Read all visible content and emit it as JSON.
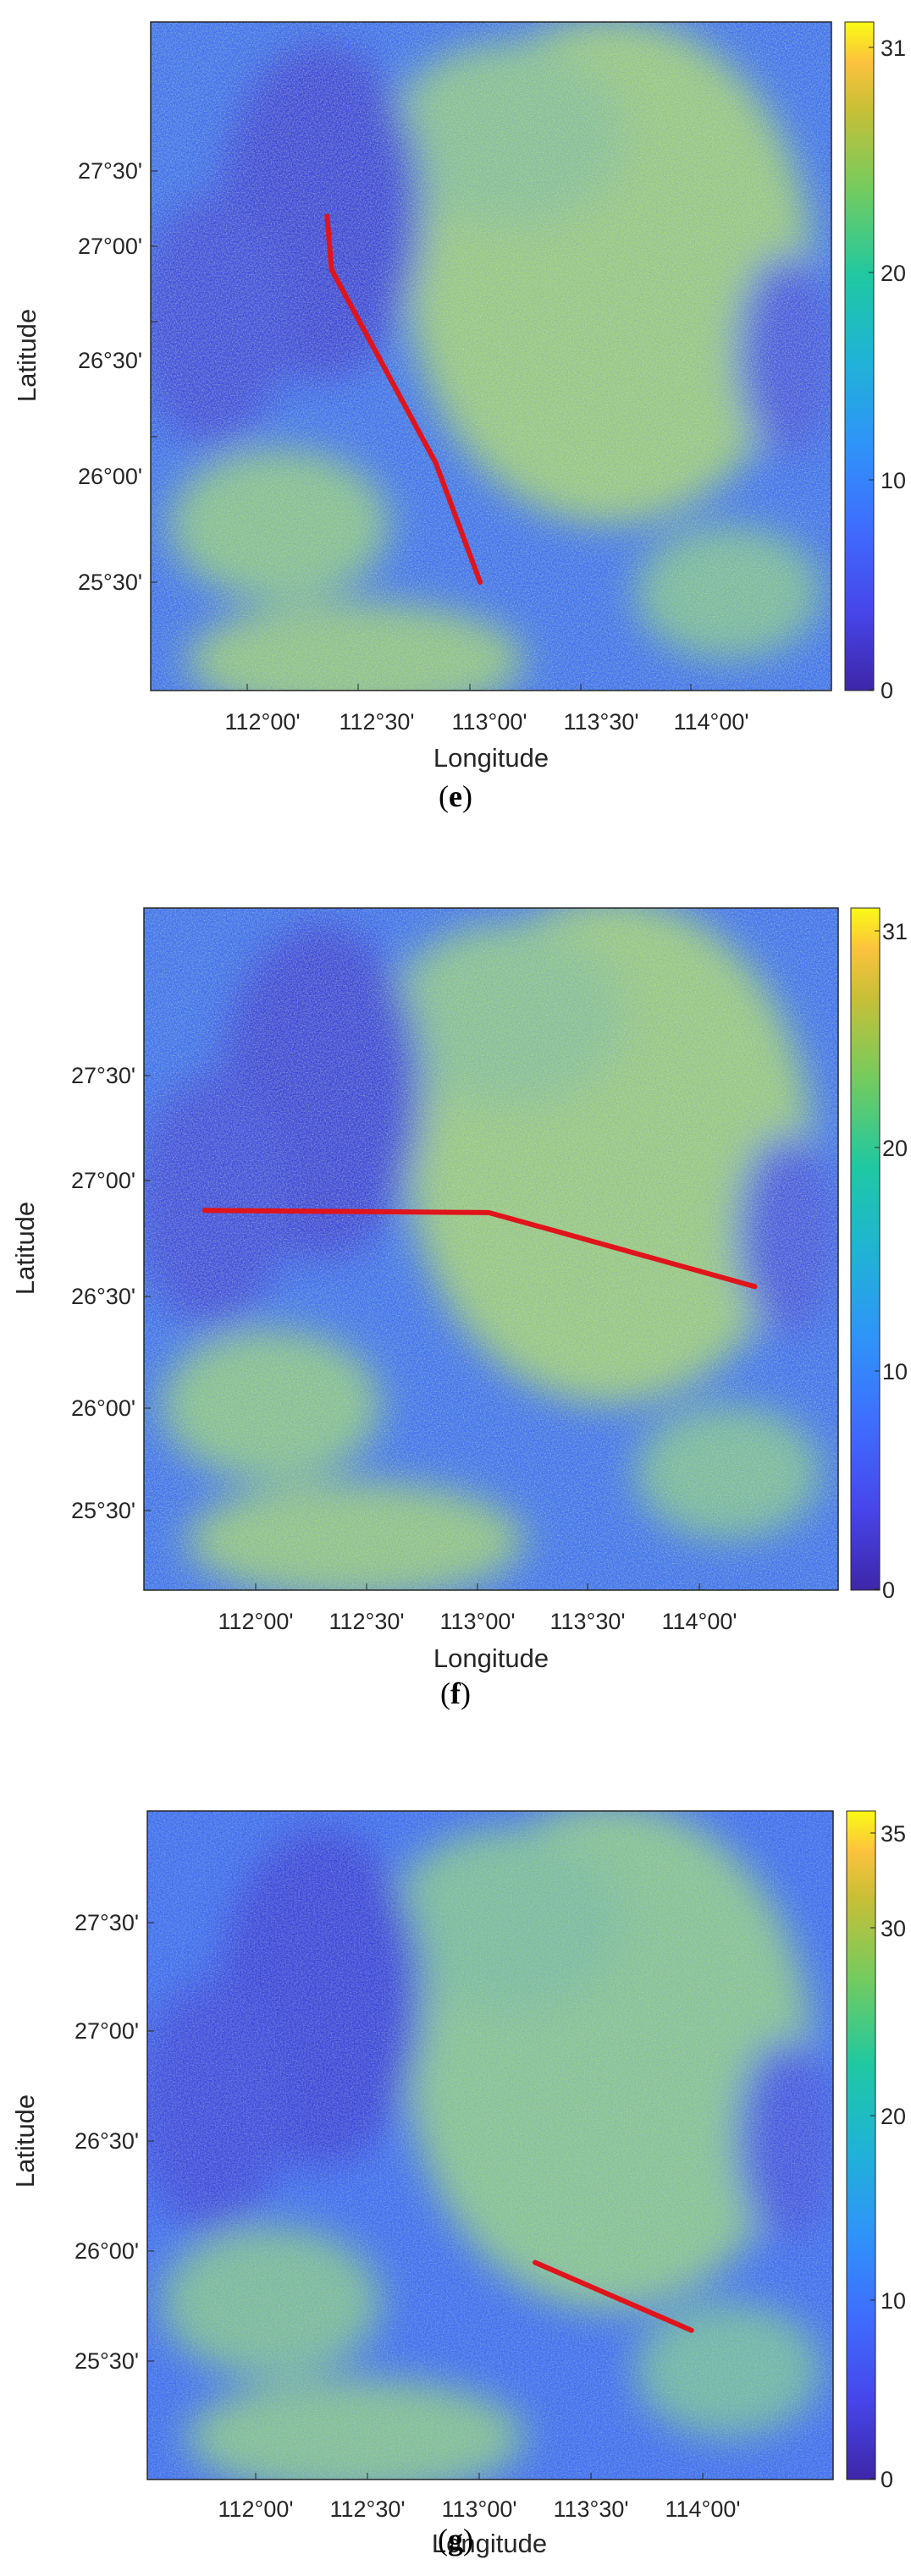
{
  "panels": [
    {
      "caption_letter": "e",
      "y_ticks": [
        "27°30'",
        "27°00'",
        "26°30'",
        "26°00'",
        "25°30'"
      ],
      "x_ticks": [
        "112°00'",
        "112°30'",
        "113°00'",
        "113°30'",
        "114°00'"
      ],
      "xlabel": "Longitude",
      "ylabel": "Latitude",
      "colorbar_ticks": [
        "31",
        "20",
        "10",
        "0"
      ],
      "track": [
        [
          112.36,
          27.28
        ],
        [
          112.38,
          27.02
        ],
        [
          112.85,
          26.08
        ],
        [
          113.05,
          25.5
        ]
      ]
    },
    {
      "caption_letter": "f",
      "y_ticks": [
        "27°30'",
        "27°00'",
        "26°30'",
        "26°00'",
        "25°30'"
      ],
      "x_ticks": [
        "112°00'",
        "112°30'",
        "113°00'",
        "113°30'",
        "114°00'"
      ],
      "xlabel": "Longitude",
      "ylabel": "Latitude",
      "colorbar_ticks": [
        "31",
        "20",
        "10",
        "0"
      ],
      "track": [
        [
          111.77,
          26.88
        ],
        [
          113.05,
          26.87
        ],
        [
          113.3,
          26.8
        ],
        [
          114.25,
          26.53
        ]
      ]
    },
    {
      "caption_letter": "g",
      "y_ticks": [
        "27°30'",
        "27°00'",
        "26°30'",
        "26°00'",
        "25°30'"
      ],
      "x_ticks": [
        "112°00'",
        "112°30'",
        "113°00'",
        "113°30'",
        "114°00'"
      ],
      "xlabel": "Longitude",
      "ylabel": "Latitude",
      "colorbar_ticks": [
        "35",
        "30",
        "20",
        "10",
        "0"
      ],
      "track": [
        [
          113.25,
          25.95
        ],
        [
          113.95,
          25.64
        ]
      ]
    }
  ],
  "colors": {
    "track": "#e0141b",
    "colormap": [
      "#3e26a8",
      "#4746eb",
      "#3e6ffe",
      "#2f94f8",
      "#1fb4d4",
      "#1fc8a2",
      "#74cb5e",
      "#c8bf37",
      "#fcc23d",
      "#f9fb15"
    ]
  }
}
